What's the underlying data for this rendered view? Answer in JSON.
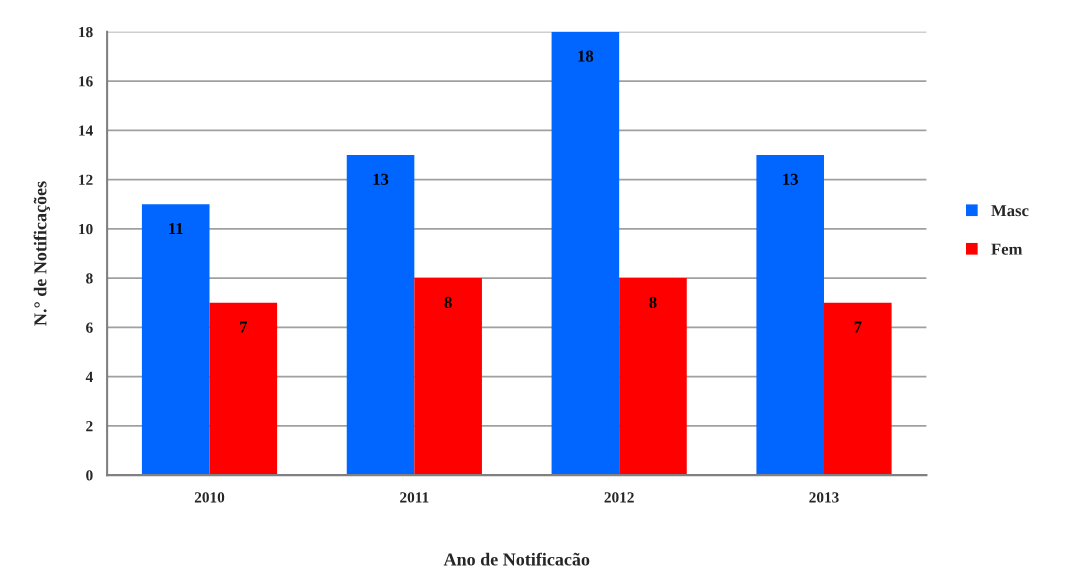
{
  "chart_data": {
    "type": "bar",
    "xlabel": "Ano de Notificacão",
    "ylabel": "N.° de Notificações",
    "categories": [
      "2010",
      "2011",
      "2012",
      "2013"
    ],
    "series": [
      {
        "name": "Masc",
        "color": "#0066ff",
        "values": [
          11,
          13,
          18,
          13
        ]
      },
      {
        "name": "Fem",
        "color": "#ff0000",
        "values": [
          7,
          8,
          8,
          7
        ]
      }
    ],
    "ylim": [
      0,
      18
    ],
    "yticks": [
      0,
      2,
      4,
      6,
      8,
      10,
      12,
      14,
      16,
      18
    ],
    "grid": "y",
    "legend": "right",
    "data_labels": true
  }
}
